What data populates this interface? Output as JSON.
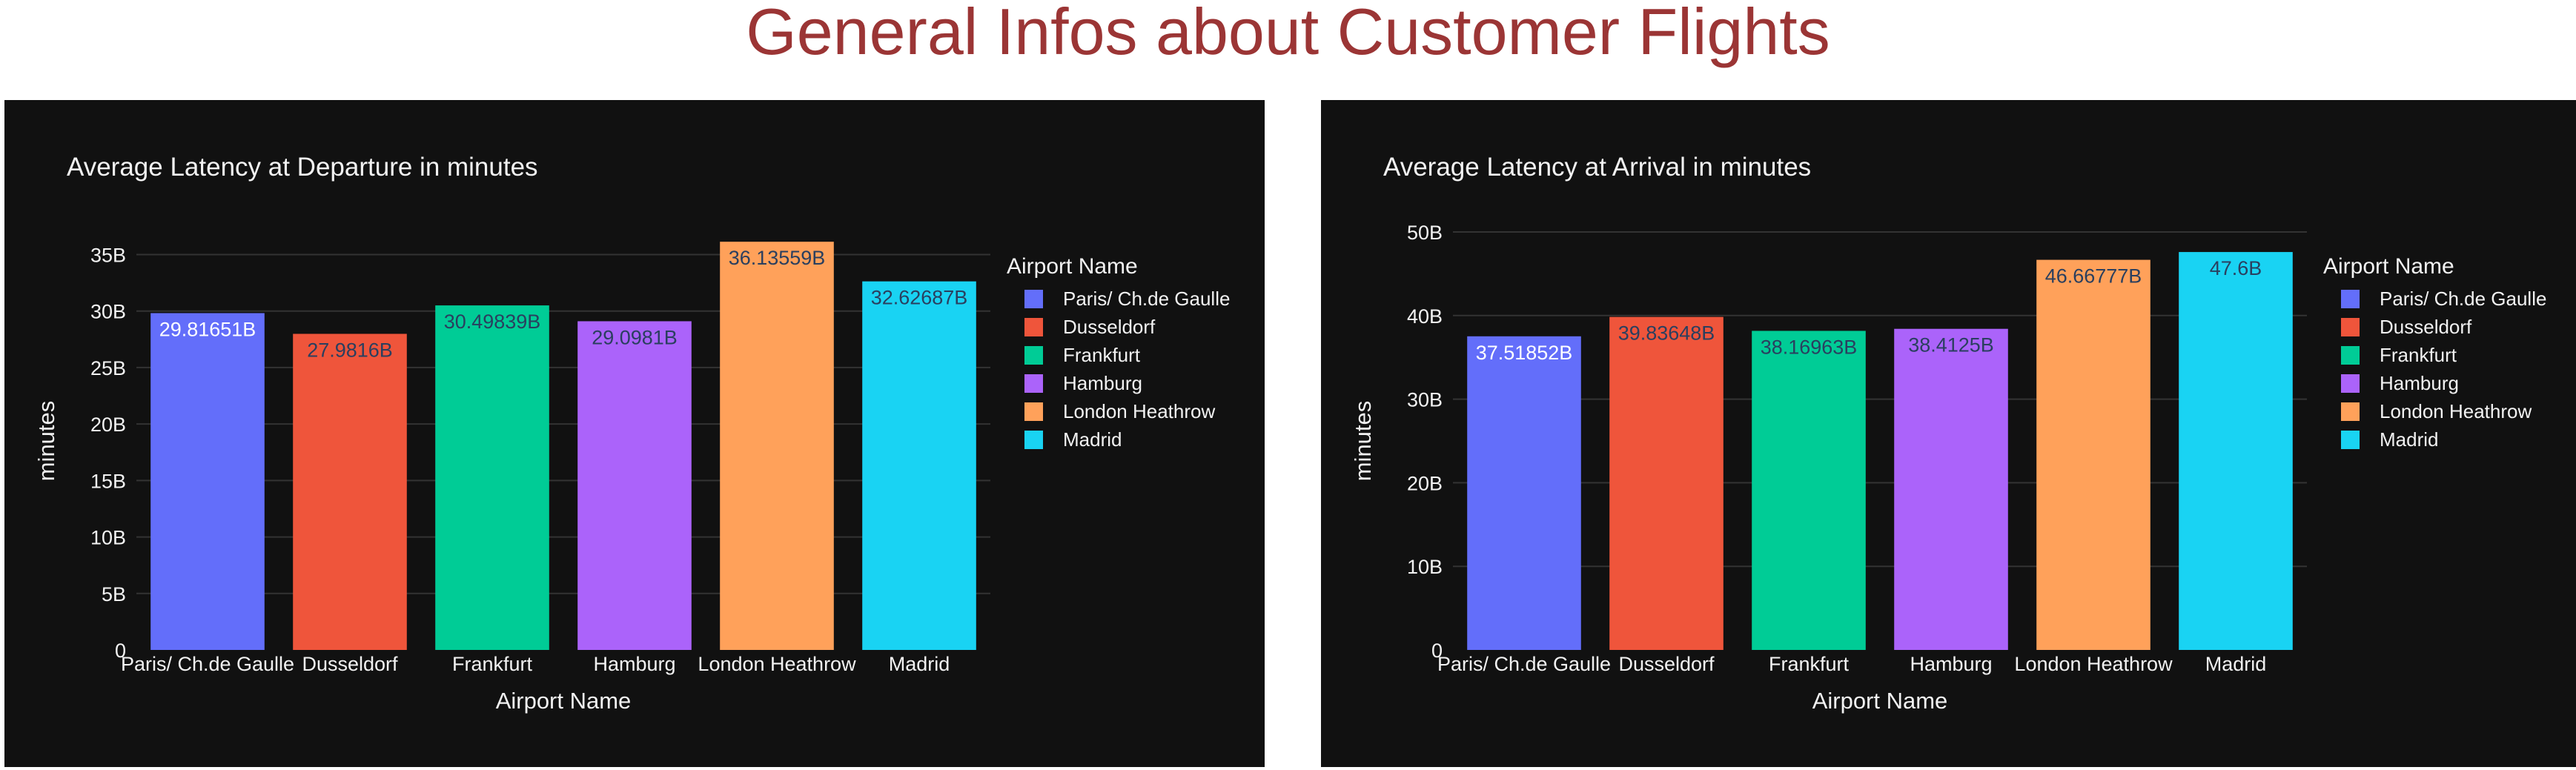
{
  "page_title": "General Infos about Customer Flights",
  "colors": {
    "page_title": "#9b3535",
    "panel_background": "#111111",
    "text": "#f2f2f2",
    "grid": "#333333",
    "series": [
      "#636efa",
      "#ef553b",
      "#00cc96",
      "#ab63fa",
      "#ffa15a",
      "#19d3f3"
    ]
  },
  "chart_data": [
    {
      "type": "bar",
      "title": "Average Latency at Departure in minutes",
      "xlabel": "Airport Name",
      "ylabel": "minutes",
      "legend_title": "Airport Name",
      "legend_position": "right",
      "grid": true,
      "ylim": [
        0,
        37000000000
      ],
      "yticks": [
        0,
        5000000000,
        10000000000,
        15000000000,
        20000000000,
        25000000000,
        30000000000,
        35000000000
      ],
      "ytick_labels": [
        "0",
        "5B",
        "10B",
        "15B",
        "20B",
        "25B",
        "30B",
        "35B"
      ],
      "categories": [
        "Paris/ Ch.de Gaulle",
        "Dusseldorf",
        "Frankfurt",
        "Hamburg",
        "London Heathrow",
        "Madrid"
      ],
      "values": [
        29816510000,
        27981600000,
        30498390000,
        29098100000,
        36135590000,
        32626870000
      ],
      "value_labels": [
        "29.81651B",
        "27.9816B",
        "30.49839B",
        "29.0981B",
        "36.13559B",
        "32.62687B"
      ]
    },
    {
      "type": "bar",
      "title": "Average Latency at Arrival in minutes",
      "xlabel": "Airport Name",
      "ylabel": "minutes",
      "legend_title": "Airport Name",
      "legend_position": "right",
      "grid": true,
      "ylim": [
        0,
        50000000000
      ],
      "yticks": [
        0,
        10000000000,
        20000000000,
        30000000000,
        40000000000,
        50000000000
      ],
      "ytick_labels": [
        "0",
        "10B",
        "20B",
        "30B",
        "40B",
        "50B"
      ],
      "categories": [
        "Paris/ Ch.de Gaulle",
        "Dusseldorf",
        "Frankfurt",
        "Hamburg",
        "London Heathrow",
        "Madrid"
      ],
      "values": [
        37518520000,
        39836480000,
        38169630000,
        38412500000,
        46667770000,
        47600000000
      ],
      "value_labels": [
        "37.51852B",
        "39.83648B",
        "38.16963B",
        "38.4125B",
        "46.66777B",
        "47.6B"
      ]
    }
  ]
}
